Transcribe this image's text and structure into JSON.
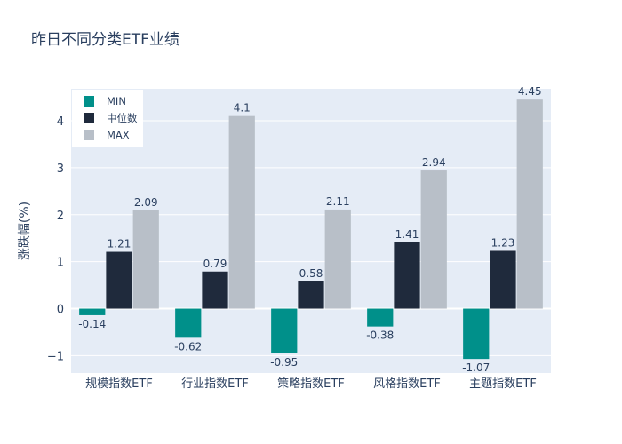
{
  "chart_data": {
    "type": "bar",
    "title": "昨日不同分类ETF业绩",
    "xlabel": "",
    "ylabel": "涨跌幅(%)",
    "categories": [
      "规模指数ETF",
      "行业指数ETF",
      "策略指数ETF",
      "风格指数ETF",
      "主题指数ETF"
    ],
    "series": [
      {
        "name": "MIN",
        "color": "#00908a",
        "values": [
          -0.14,
          -0.62,
          -0.95,
          -0.38,
          -1.07
        ],
        "labels": [
          "-0.14",
          "-0.62",
          "-0.95",
          "-0.38",
          "-1.07"
        ]
      },
      {
        "name": "中位数",
        "color": "#1f2a3c",
        "values": [
          1.21,
          0.79,
          0.58,
          1.41,
          1.23
        ],
        "labels": [
          "1.21",
          "0.79",
          "0.58",
          "1.41",
          "1.23"
        ]
      },
      {
        "name": "MAX",
        "color": "#b8bfc8",
        "values": [
          2.09,
          4.1,
          2.11,
          2.94,
          4.45
        ],
        "labels": [
          "2.09",
          "4.1",
          "2.11",
          "2.94",
          "4.45"
        ]
      }
    ],
    "yticks": [
      -1,
      0,
      1,
      2,
      3,
      4
    ],
    "ylim": [
      -1.37,
      4.68
    ],
    "grid": true,
    "legend_position": "top-left",
    "plot_background": "#e5ecf6"
  }
}
